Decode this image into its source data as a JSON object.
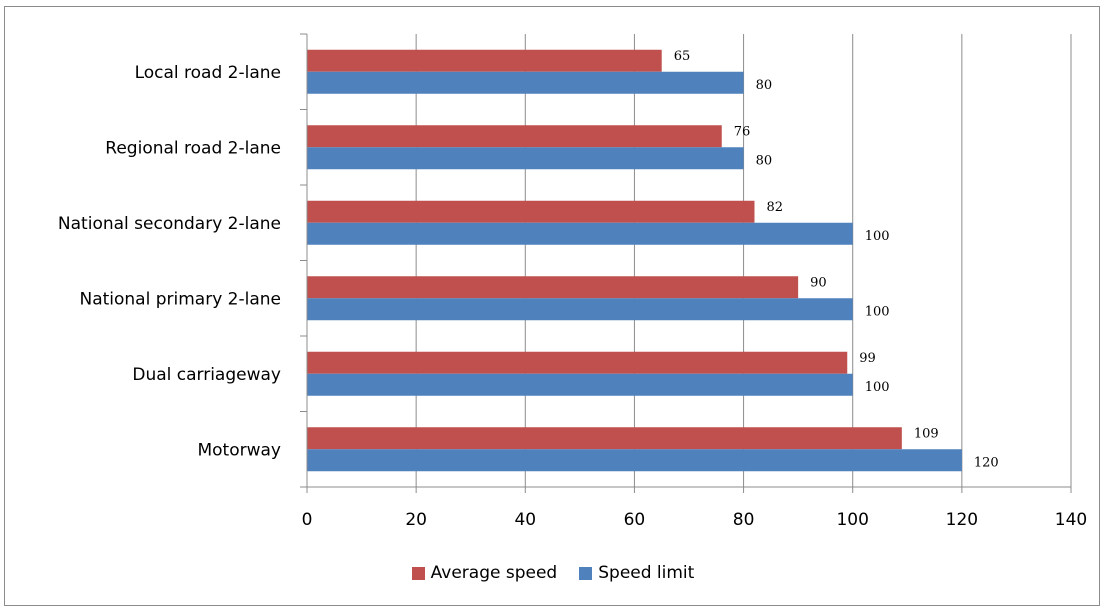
{
  "title": "",
  "chart_data": {
    "type": "bar",
    "orientation": "horizontal",
    "categories": [
      "Local road 2-lane",
      "Regional road 2-lane",
      "National secondary 2-lane",
      "National primary 2-lane",
      "Dual carriageway",
      "Motorway"
    ],
    "series": [
      {
        "name": "Average speed",
        "color": "#c0504d",
        "values": [
          65,
          76,
          82,
          90,
          99,
          109
        ]
      },
      {
        "name": "Speed limit",
        "color": "#4f81bd",
        "values": [
          80,
          80,
          100,
          100,
          100,
          120
        ]
      }
    ],
    "xlim": [
      0,
      140
    ],
    "xticks": [
      "0",
      "20",
      "40",
      "60",
      "80",
      "100",
      "120",
      "140"
    ],
    "xlabel": "",
    "ylabel": "",
    "grid": "vertical",
    "legend": "bottom"
  }
}
